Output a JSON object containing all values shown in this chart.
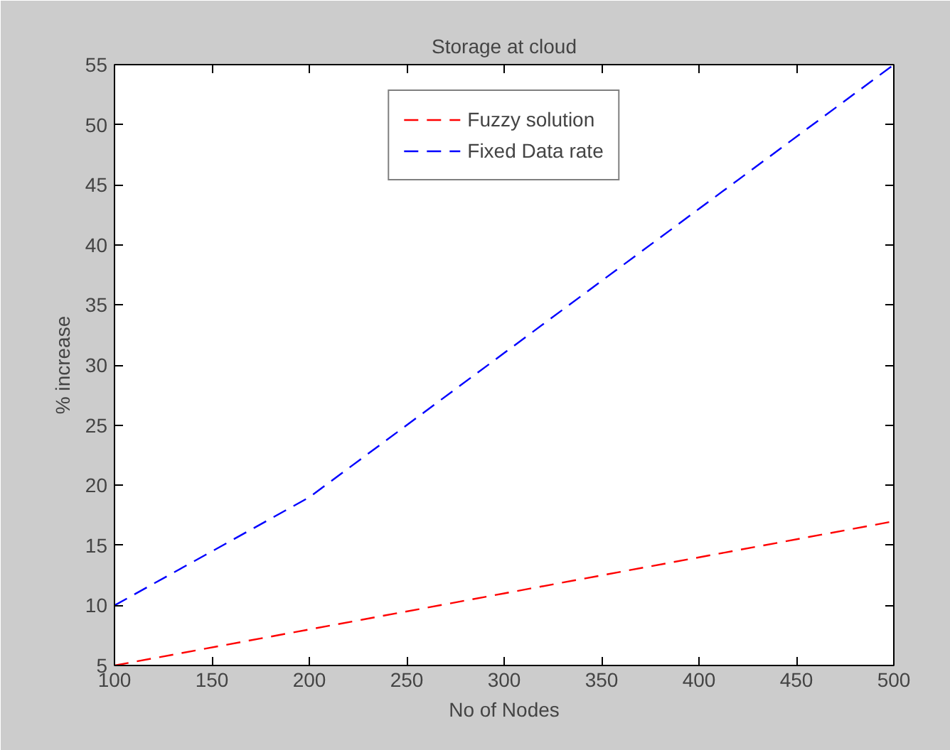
{
  "chart_data": {
    "type": "line",
    "title": "Storage at cloud",
    "xlabel": "No of Nodes",
    "ylabel": "% increase",
    "x": [
      100,
      200,
      300,
      400,
      500
    ],
    "series": [
      {
        "name": "Fuzzy solution",
        "color": "#ff0000",
        "values": [
          5,
          8,
          11,
          14,
          17
        ]
      },
      {
        "name": "Fixed Data rate",
        "color": "#0000ff",
        "values": [
          10,
          19,
          31,
          43,
          55
        ]
      }
    ],
    "xlim": [
      100,
      500
    ],
    "ylim": [
      5,
      55
    ],
    "xticks": [
      100,
      150,
      200,
      250,
      300,
      350,
      400,
      450,
      500
    ],
    "yticks": [
      5,
      10,
      15,
      20,
      25,
      30,
      35,
      40,
      45,
      50,
      55
    ],
    "grid": false,
    "legend": "top",
    "line_style": "dashed",
    "marker": "none"
  }
}
